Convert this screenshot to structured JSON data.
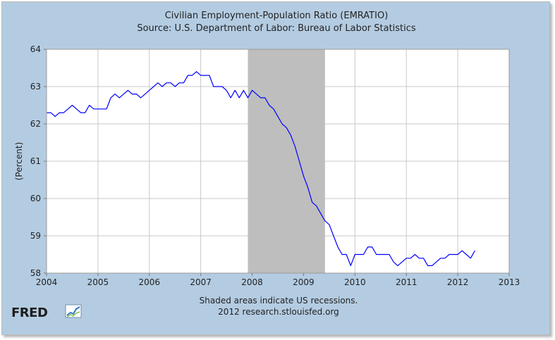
{
  "chart_data": {
    "type": "line",
    "title": "Civilian Employment-Population Ratio (EMRATIO)",
    "subtitle": "Source: U.S. Department of Labor: Bureau of Labor Statistics",
    "xlabel": "",
    "ylabel": "(Percent)",
    "xlim": [
      2004,
      2013
    ],
    "ylim": [
      58,
      64
    ],
    "x_ticks": [
      "2004",
      "2005",
      "2006",
      "2007",
      "2008",
      "2009",
      "2010",
      "2011",
      "2012",
      "2013"
    ],
    "y_ticks": [
      "58",
      "59",
      "60",
      "61",
      "62",
      "63",
      "64"
    ],
    "grid": true,
    "series": [
      {
        "name": "EMRATIO",
        "color": "#0000ff",
        "x": [
          2004.0,
          2004.083,
          2004.167,
          2004.25,
          2004.333,
          2004.417,
          2004.5,
          2004.583,
          2004.667,
          2004.75,
          2004.833,
          2004.917,
          2005.0,
          2005.083,
          2005.167,
          2005.25,
          2005.333,
          2005.417,
          2005.5,
          2005.583,
          2005.667,
          2005.75,
          2005.833,
          2005.917,
          2006.0,
          2006.083,
          2006.167,
          2006.25,
          2006.333,
          2006.417,
          2006.5,
          2006.583,
          2006.667,
          2006.75,
          2006.833,
          2006.917,
          2007.0,
          2007.083,
          2007.167,
          2007.25,
          2007.333,
          2007.417,
          2007.5,
          2007.583,
          2007.667,
          2007.75,
          2007.833,
          2007.917,
          2008.0,
          2008.083,
          2008.167,
          2008.25,
          2008.333,
          2008.417,
          2008.5,
          2008.583,
          2008.667,
          2008.75,
          2008.833,
          2008.917,
          2009.0,
          2009.083,
          2009.167,
          2009.25,
          2009.333,
          2009.417,
          2009.5,
          2009.583,
          2009.667,
          2009.75,
          2009.833,
          2009.917,
          2010.0,
          2010.083,
          2010.167,
          2010.25,
          2010.333,
          2010.417,
          2010.5,
          2010.583,
          2010.667,
          2010.75,
          2010.833,
          2010.917,
          2011.0,
          2011.083,
          2011.167,
          2011.25,
          2011.333,
          2011.417,
          2011.5,
          2011.583,
          2011.667,
          2011.75,
          2011.833,
          2011.917,
          2012.0,
          2012.083,
          2012.167,
          2012.25,
          2012.333
        ],
        "values": [
          62.3,
          62.3,
          62.2,
          62.3,
          62.3,
          62.4,
          62.5,
          62.4,
          62.3,
          62.3,
          62.5,
          62.4,
          62.4,
          62.4,
          62.4,
          62.7,
          62.8,
          62.7,
          62.8,
          62.9,
          62.8,
          62.8,
          62.7,
          62.8,
          62.9,
          63.0,
          63.1,
          63.0,
          63.1,
          63.1,
          63.0,
          63.1,
          63.1,
          63.3,
          63.3,
          63.4,
          63.3,
          63.3,
          63.3,
          63.0,
          63.0,
          63.0,
          62.9,
          62.7,
          62.9,
          62.7,
          62.9,
          62.7,
          62.9,
          62.8,
          62.7,
          62.7,
          62.5,
          62.4,
          62.2,
          62.0,
          61.9,
          61.7,
          61.4,
          61.0,
          60.6,
          60.3,
          59.9,
          59.8,
          59.6,
          59.4,
          59.3,
          59.0,
          58.7,
          58.5,
          58.5,
          58.2,
          58.5,
          58.5,
          58.5,
          58.7,
          58.7,
          58.5,
          58.5,
          58.5,
          58.5,
          58.3,
          58.2,
          58.3,
          58.4,
          58.4,
          58.5,
          58.4,
          58.4,
          58.2,
          58.2,
          58.3,
          58.4,
          58.4,
          58.5,
          58.5,
          58.5,
          58.6,
          58.5,
          58.4,
          58.6
        ]
      }
    ],
    "recession": {
      "start": 2007.917,
      "end": 2009.417,
      "color": "#bebebe"
    }
  },
  "footer": {
    "note": "Shaded areas indicate US recessions.",
    "credit": "2012 research.stlouisfed.org"
  },
  "brand": {
    "name": "FRED"
  },
  "colors": {
    "panel": "#b4cce2",
    "plot": "#ffffff",
    "grid": "#c8c8c8",
    "line": "#0000ff"
  }
}
